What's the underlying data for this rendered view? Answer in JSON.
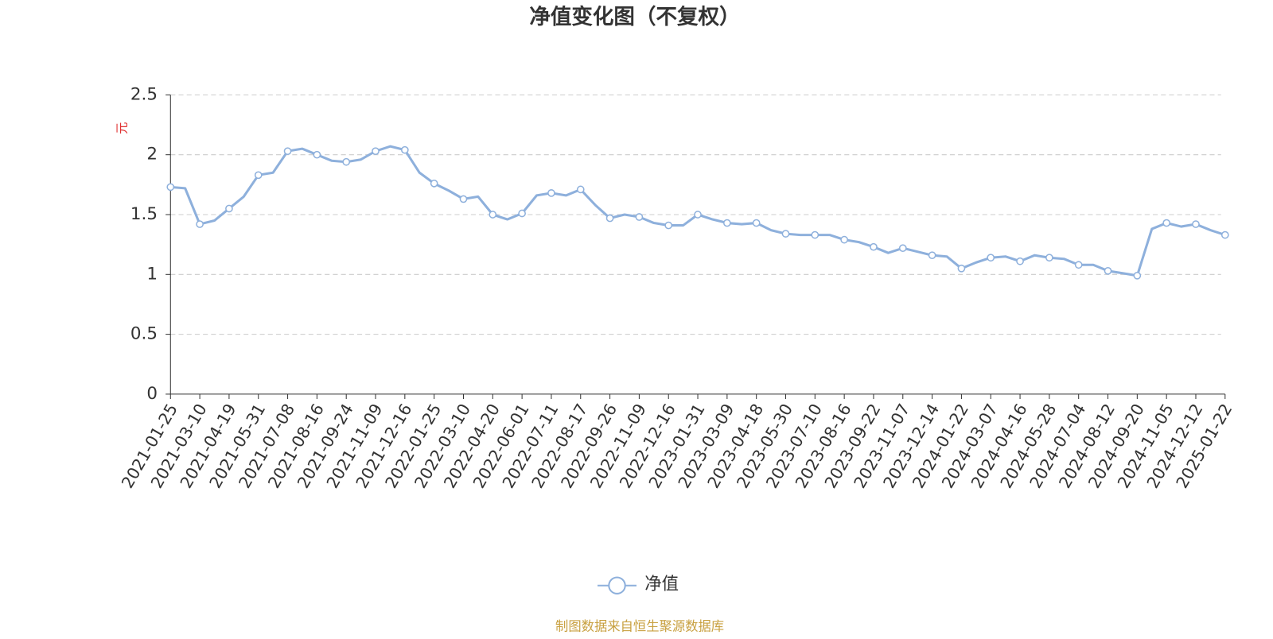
{
  "chart_data": {
    "type": "line",
    "title": "净值变化图（不复权）",
    "y_label": "元",
    "source": "制图数据来自恒生聚源数据库",
    "categories": [
      "2021-01-25",
      null,
      "2021-03-10",
      null,
      "2021-04-19",
      null,
      "2021-05-31",
      null,
      "2021-07-08",
      null,
      "2021-08-16",
      null,
      "2021-09-24",
      null,
      "2021-11-09",
      null,
      "2021-12-16",
      null,
      "2022-01-25",
      null,
      "2022-03-10",
      null,
      "2022-04-20",
      null,
      "2022-06-01",
      null,
      "2022-07-11",
      null,
      "2022-08-17",
      null,
      "2022-09-26",
      null,
      "2022-11-09",
      null,
      "2022-12-16",
      null,
      "2023-01-31",
      null,
      "2023-03-09",
      null,
      "2023-04-18",
      null,
      "2023-05-30",
      null,
      "2023-07-10",
      null,
      "2023-08-16",
      null,
      "2023-09-22",
      null,
      "2023-11-07",
      null,
      "2023-12-14",
      null,
      "2024-01-22",
      null,
      "2024-03-07",
      null,
      "2024-04-16",
      null,
      "2024-05-28",
      null,
      "2024-07-04",
      null,
      "2024-08-12",
      null,
      "2024-09-20",
      null,
      "2024-11-05",
      null,
      "2024-12-12",
      null,
      "2025-01-22"
    ],
    "series": [
      {
        "name": "净值",
        "color": "#8eb0dc",
        "values": [
          1.73,
          1.72,
          1.42,
          1.45,
          1.55,
          1.65,
          1.83,
          1.85,
          2.03,
          2.05,
          2.0,
          1.95,
          1.94,
          1.96,
          2.03,
          2.07,
          2.04,
          1.85,
          1.76,
          1.7,
          1.63,
          1.65,
          1.5,
          1.46,
          1.51,
          1.66,
          1.68,
          1.66,
          1.71,
          1.58,
          1.47,
          1.5,
          1.48,
          1.43,
          1.41,
          1.41,
          1.5,
          1.46,
          1.43,
          1.42,
          1.43,
          1.37,
          1.34,
          1.33,
          1.33,
          1.33,
          1.29,
          1.27,
          1.23,
          1.18,
          1.22,
          1.19,
          1.16,
          1.15,
          1.05,
          1.1,
          1.14,
          1.15,
          1.11,
          1.16,
          1.14,
          1.13,
          1.08,
          1.08,
          1.03,
          1.01,
          0.99,
          1.38,
          1.43,
          1.4,
          1.42,
          1.37,
          1.33
        ]
      }
    ],
    "ylim": [
      0,
      2.5
    ],
    "yticks": [
      0,
      0.5,
      1,
      1.5,
      2,
      2.5
    ],
    "grid": true
  }
}
